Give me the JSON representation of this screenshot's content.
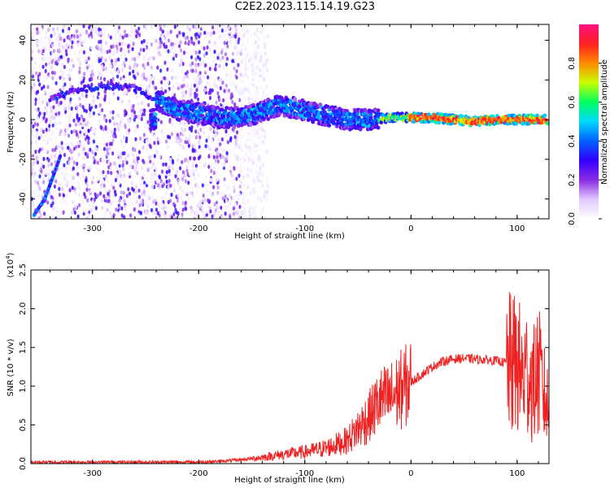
{
  "page": {
    "title": "C2E2.2023.115.14.19.G23"
  },
  "chart_data": [
    {
      "type": "heatmap",
      "xlabel": "Height of straight line (km)",
      "ylabel": "Frequency (Hz)",
      "xlim": [
        -358,
        130
      ],
      "ylim": [
        -50,
        48
      ],
      "xticks": [
        -300,
        -200,
        -100,
        0,
        100
      ],
      "xtick_labels": [
        "-300",
        "-200",
        "-100",
        "0",
        "100"
      ],
      "yticks": [
        -40,
        -20,
        0,
        20,
        40
      ],
      "ytick_labels": [
        "-40",
        "-20",
        "0",
        "20",
        "40"
      ],
      "colorbar": {
        "label": "Normalized spectral amplitude",
        "range": [
          0,
          1
        ],
        "ticks": [
          0.0,
          0.2,
          0.4,
          0.6,
          0.8
        ],
        "tick_labels": [
          "0.0",
          "0.2",
          "0.4",
          "0.6",
          "0.8"
        ],
        "colormap": [
          "#ffffff",
          "#e0c8ff",
          "#8a2be2",
          "#3300ff",
          "#0060ff",
          "#00d8ff",
          "#00ff60",
          "#c8ff00",
          "#ff8a00",
          "#ff2020",
          "#ff1080"
        ]
      },
      "features": {
        "noise_region_km": [
          -358,
          -160
        ],
        "ridge_points": [
          [
            -355,
            -48
          ],
          [
            -345,
            -40
          ],
          [
            -338,
            -30
          ],
          [
            -330,
            -18
          ],
          [
            -340,
            10
          ],
          [
            -320,
            14
          ],
          [
            -300,
            16
          ],
          [
            -280,
            17
          ],
          [
            -260,
            16
          ],
          [
            -240,
            10
          ],
          [
            -220,
            5
          ],
          [
            -200,
            3
          ],
          [
            -180,
            1
          ],
          [
            -160,
            1
          ],
          [
            -140,
            4
          ],
          [
            -125,
            7
          ],
          [
            -110,
            6
          ],
          [
            -95,
            4
          ],
          [
            -80,
            2
          ],
          [
            -60,
            0
          ],
          [
            -40,
            0
          ],
          [
            -20,
            1
          ],
          [
            0,
            1
          ],
          [
            20,
            1
          ],
          [
            40,
            0
          ],
          [
            60,
            -1
          ],
          [
            80,
            0
          ],
          [
            100,
            0
          ],
          [
            120,
            0
          ],
          [
            130,
            0
          ]
        ]
      },
      "grid": false
    },
    {
      "type": "line",
      "xlabel": "Height of straight line (km)",
      "ylabel": "SNR (10 * v/v)",
      "y_multiplier_label": "(x10",
      "y_multiplier_exp": "4",
      "y_multiplier_close": ")",
      "xlim": [
        -358,
        130
      ],
      "ylim": [
        0,
        2.5
      ],
      "xticks": [
        -300,
        -200,
        -100,
        0,
        100
      ],
      "xtick_labels": [
        "-300",
        "-200",
        "-100",
        "0",
        "100"
      ],
      "yticks": [
        0,
        0.5,
        1.0,
        1.5,
        2.0,
        2.5
      ],
      "ytick_labels": [
        "0.0",
        "0.5",
        "1.0",
        "1.5",
        "2.0",
        "2.5"
      ],
      "color": "#ee2222",
      "series": [
        {
          "x": [
            -358,
            -300,
            -250,
            -200,
            -180,
            -160,
            -140,
            -120,
            -100,
            -80,
            -60,
            -50,
            -40,
            -30,
            -20,
            -10,
            0,
            10,
            20,
            30,
            40,
            50,
            60,
            70,
            80,
            90,
            95,
            100,
            105,
            110,
            115,
            120,
            125,
            130
          ],
          "values": [
            0.02,
            0.02,
            0.02,
            0.02,
            0.03,
            0.05,
            0.08,
            0.12,
            0.15,
            0.2,
            0.3,
            0.45,
            0.6,
            0.8,
            0.85,
            0.95,
            1.05,
            1.15,
            1.25,
            1.32,
            1.35,
            1.36,
            1.35,
            1.34,
            1.33,
            1.3,
            1.25,
            1.3,
            1.1,
            1.2,
            1.0,
            1.2,
            0.9,
            0.7
          ]
        }
      ],
      "grid": false
    }
  ]
}
